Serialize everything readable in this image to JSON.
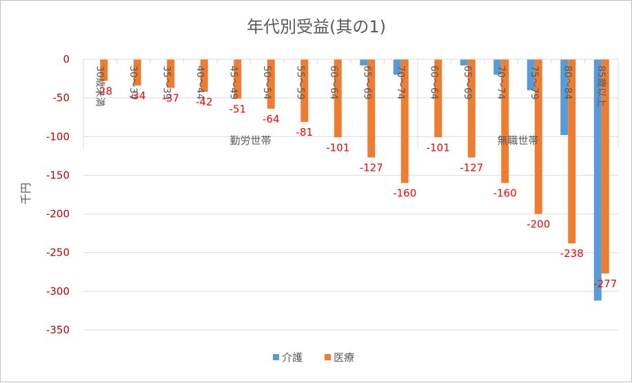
{
  "chart_data": {
    "type": "bar",
    "title": "年代別受益(其の1)",
    "ylabel": "千円",
    "xlabel": "",
    "ylim": [
      -350,
      0
    ],
    "yticks": [
      0,
      -50,
      -100,
      -150,
      -200,
      -250,
      -300,
      -350
    ],
    "grid": true,
    "legend_position": "bottom",
    "groups": [
      {
        "name": "勤労世帯",
        "categories": [
          "30歳未満",
          "30～34",
          "35～39",
          "40～44",
          "45～49",
          "50～54",
          "55～59",
          "60～64",
          "65～69",
          "70～74"
        ]
      },
      {
        "name": "無職世帯",
        "categories": [
          "60～64",
          "65～69",
          "70～74",
          "75～79",
          "80～84",
          "85歳以上"
        ]
      }
    ],
    "categories": [
      "30歳未満",
      "30～34",
      "35～39",
      "40～44",
      "45～49",
      "50～54",
      "55～59",
      "60～64",
      "65～69",
      "70～74",
      "60～64",
      "65～69",
      "70～74",
      "75～79",
      "80～84",
      "85歳以上"
    ],
    "series": [
      {
        "name": "介護",
        "color": "#5b9bd5",
        "values": [
          0,
          0,
          0,
          0,
          0,
          0,
          0,
          0,
          -8,
          -20,
          0,
          -8,
          -20,
          -40,
          -98,
          -312
        ]
      },
      {
        "name": "医療",
        "color": "#ed7d31",
        "values": [
          -28,
          -34,
          -37,
          -42,
          -51,
          -64,
          -81,
          -101,
          -127,
          -160,
          -101,
          -127,
          -160,
          -200,
          -238,
          -277
        ],
        "data_labels": [
          "-28",
          "-34",
          "-37",
          "-42",
          "-51",
          "-64",
          "-81",
          "-101",
          "-127",
          "-160",
          "-101",
          "-127",
          "-160",
          "-200",
          "-238",
          "-277"
        ]
      }
    ]
  }
}
